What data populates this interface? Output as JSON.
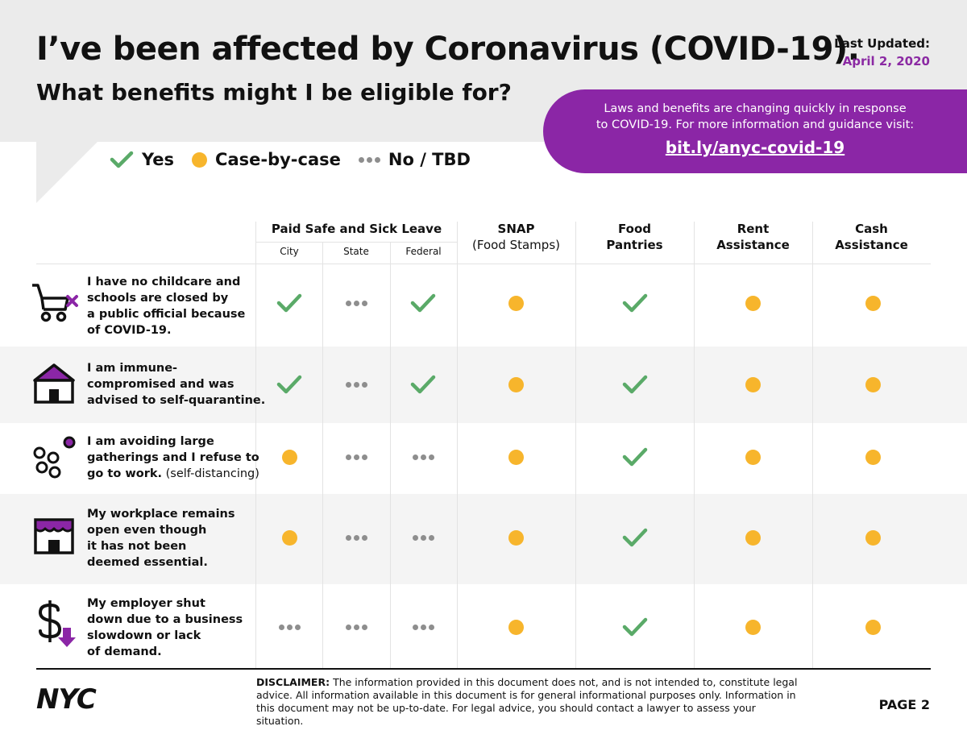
{
  "header": {
    "title": "I’ve been affected by Coronavirus (COVID-19).",
    "subtitle": "What benefits might I be eligible for?",
    "updated_label": "Last Updated:",
    "updated_date": "April 2, 2020"
  },
  "info_box": {
    "line1": "Laws and benefits are changing quickly in response",
    "line2": "to COVID-19. For more information and guidance visit:",
    "link": "bit.ly/anyc-covid-19"
  },
  "legend": {
    "yes": "Yes",
    "case": "Case-by-case",
    "no": "No / TBD"
  },
  "columns": {
    "paid_leave": "Paid Safe and Sick Leave",
    "city": "City",
    "state": "State",
    "federal": "Federal",
    "snap_1": "SNAP",
    "snap_2": "(Food Stamps)",
    "food_1": "Food",
    "food_2": "Pantries",
    "rent_1": "Rent",
    "rent_2": "Assistance",
    "cash_1": "Cash",
    "cash_2": "Assistance"
  },
  "rows": [
    {
      "l1": "I have no childcare and",
      "l2": "schools are closed by",
      "l3": "a public official because",
      "l4": "of COVID-19.",
      "icon": "stroller-icon",
      "values": [
        "yes",
        "no",
        "yes",
        "case",
        "yes",
        "case",
        "case"
      ]
    },
    {
      "l1": "I am immune-",
      "l2": "compromised and was",
      "l3": "advised to self-quarantine.",
      "icon": "house-icon",
      "values": [
        "yes",
        "no",
        "yes",
        "case",
        "yes",
        "case",
        "case"
      ]
    },
    {
      "l1": "I am avoiding large",
      "l2": "gatherings and I refuse to",
      "l3a": "go to work.",
      "l3b": " (self-distancing)",
      "icon": "crowd-icon",
      "values": [
        "case",
        "no",
        "no",
        "case",
        "yes",
        "case",
        "case"
      ]
    },
    {
      "l1": "My workplace remains",
      "l2": "open even though",
      "l3": "it has not been",
      "l4": "deemed essential.",
      "icon": "storefront-icon",
      "values": [
        "case",
        "no",
        "no",
        "case",
        "yes",
        "case",
        "case"
      ]
    },
    {
      "l1": "My employer shut",
      "l2": "down due to a business",
      "l3": "slowdown or lack",
      "l4": "of demand.",
      "icon": "dollar-down-icon",
      "values": [
        "no",
        "no",
        "no",
        "case",
        "yes",
        "case",
        "case"
      ]
    }
  ],
  "footer": {
    "logo": "NYC",
    "disclaimer_label": "DISCLAIMER:",
    "disclaimer_text": " The information provided in this document does not, and is not intended to, constitute legal advice. All information available in this document is for general informational purposes only. Information in this document may not be up-to-date. For legal advice, you should contact a lawyer to assess your situation.",
    "page": "PAGE 2"
  },
  "colors": {
    "yes": "#5aaa68",
    "case": "#f7b52c",
    "no": "#8e8e8e",
    "accent": "#8b26a6"
  }
}
